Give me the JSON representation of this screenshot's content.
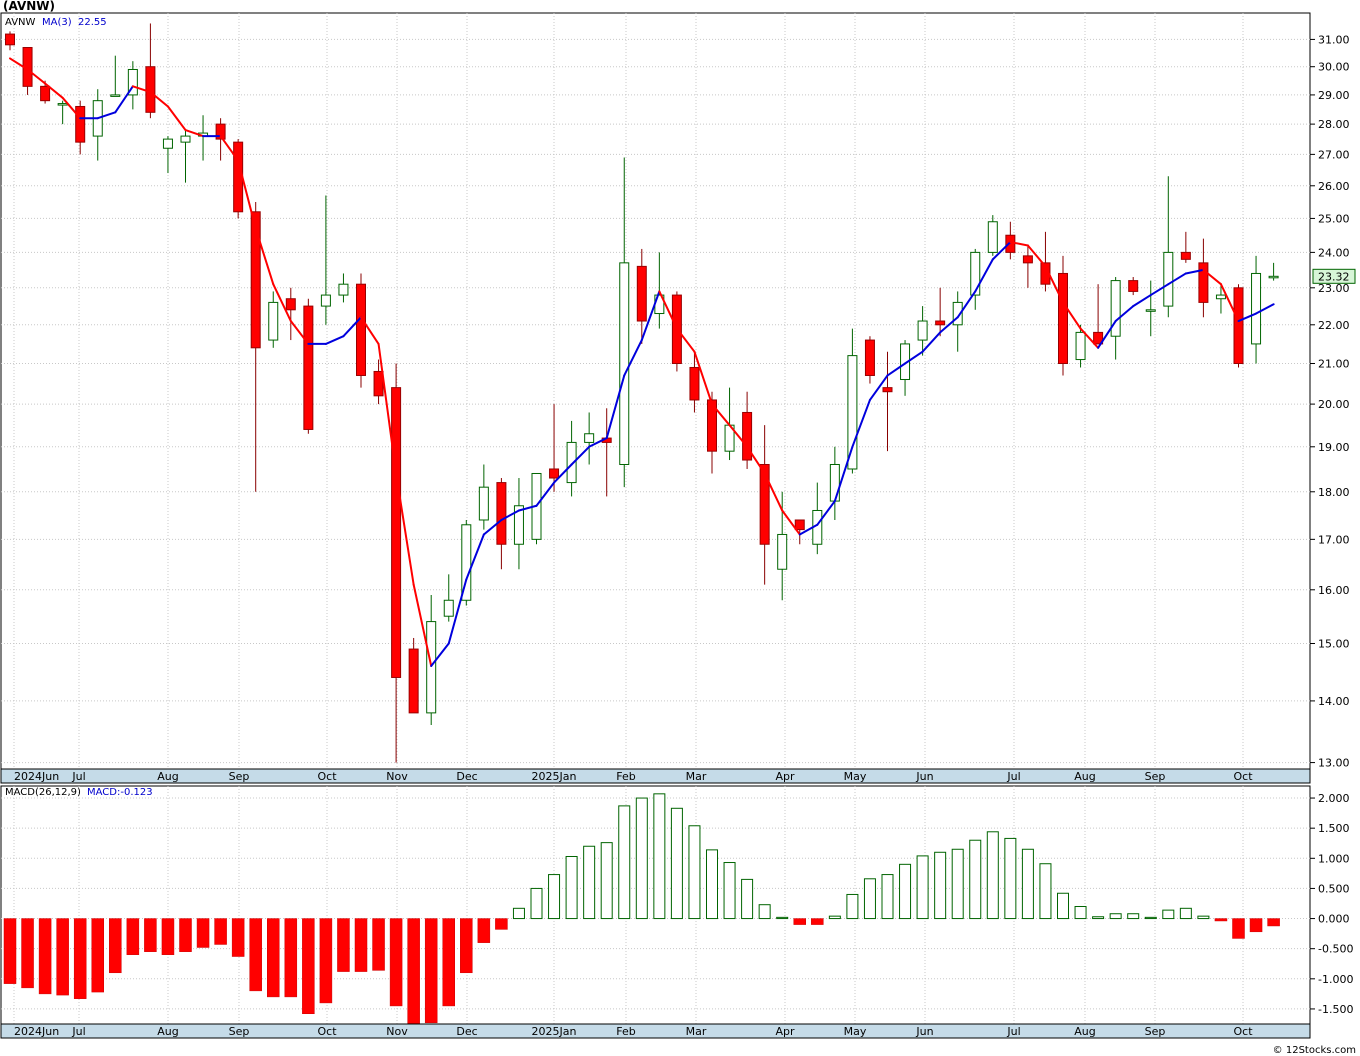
{
  "header": {
    "title": "(AVNW)",
    "legend_symbol": "AVNW",
    "legend_ma": "MA(3)",
    "legend_ma_value": "22.55",
    "macd_label": "MACD(26,12,9)",
    "macd_value_label": "MACD:-0.123",
    "last_price": "23.32",
    "credit": "© 12Stocks.com"
  },
  "colors": {
    "down": "#ff0000",
    "up_fill": "#ffffff",
    "up_stroke": "#006400",
    "ma_down": "#ff0000",
    "ma_up": "#0000dd",
    "grid": "#c8c8c8",
    "axis_band": "#c5dbe8",
    "macd_neg": "#ff0000",
    "macd_pos_stroke": "#006400"
  },
  "chart_data": [
    {
      "type": "candlestick",
      "title": "(AVNW)",
      "scale": "log",
      "ylim": [
        12.9,
        32.0
      ],
      "y_ticks": [
        "13.00",
        "14.00",
        "15.00",
        "16.00",
        "17.00",
        "18.00",
        "19.00",
        "20.00",
        "21.00",
        "22.00",
        "23.00",
        "24.00",
        "25.00",
        "26.00",
        "27.00",
        "28.00",
        "29.00",
        "30.00",
        "31.00"
      ],
      "x_labels": [
        "2024Jun",
        "Jul",
        "Aug",
        "Sep",
        "Oct",
        "Nov",
        "Dec",
        "2025Jan",
        "Feb",
        "Mar",
        "Apr",
        "May",
        "Jun",
        "Jul",
        "Aug",
        "Sep",
        "Oct"
      ],
      "grid": true,
      "candles": [
        {
          "o": 31.2,
          "h": 31.3,
          "l": 30.6,
          "c": 30.8
        },
        {
          "o": 30.7,
          "h": 30.7,
          "l": 29.0,
          "c": 29.3
        },
        {
          "o": 29.3,
          "h": 29.5,
          "l": 28.7,
          "c": 28.8
        },
        {
          "o": 28.7,
          "h": 28.8,
          "l": 28.0,
          "c": 28.7
        },
        {
          "o": 28.6,
          "h": 28.8,
          "l": 27.0,
          "c": 27.4
        },
        {
          "o": 27.6,
          "h": 29.2,
          "l": 26.8,
          "c": 28.8
        },
        {
          "o": 29.0,
          "h": 30.4,
          "l": 29.0,
          "c": 29.0
        },
        {
          "o": 29.0,
          "h": 30.2,
          "l": 28.5,
          "c": 29.9
        },
        {
          "o": 30.0,
          "h": 31.6,
          "l": 28.2,
          "c": 28.4
        },
        {
          "o": 27.2,
          "h": 27.6,
          "l": 26.4,
          "c": 27.5
        },
        {
          "o": 27.4,
          "h": 27.8,
          "l": 26.1,
          "c": 27.6
        },
        {
          "o": 27.6,
          "h": 28.3,
          "l": 26.8,
          "c": 27.7
        },
        {
          "o": 28.0,
          "h": 28.2,
          "l": 26.8,
          "c": 27.5
        },
        {
          "o": 27.4,
          "h": 27.5,
          "l": 25.0,
          "c": 25.2
        },
        {
          "o": 25.2,
          "h": 25.5,
          "l": 18.0,
          "c": 21.4
        },
        {
          "o": 21.6,
          "h": 22.9,
          "l": 21.4,
          "c": 22.6
        },
        {
          "o": 22.7,
          "h": 23.0,
          "l": 21.6,
          "c": 22.4
        },
        {
          "o": 22.5,
          "h": 22.7,
          "l": 19.3,
          "c": 19.4
        },
        {
          "o": 22.5,
          "h": 25.7,
          "l": 22.0,
          "c": 22.8
        },
        {
          "o": 22.8,
          "h": 23.4,
          "l": 22.6,
          "c": 23.1
        },
        {
          "o": 23.1,
          "h": 23.4,
          "l": 20.4,
          "c": 20.7
        },
        {
          "o": 20.8,
          "h": 21.1,
          "l": 20.0,
          "c": 20.2
        },
        {
          "o": 20.4,
          "h": 21.0,
          "l": 13.0,
          "c": 14.4
        },
        {
          "o": 14.9,
          "h": 15.1,
          "l": 13.8,
          "c": 13.8
        },
        {
          "o": 13.8,
          "h": 15.9,
          "l": 13.6,
          "c": 15.4
        },
        {
          "o": 15.5,
          "h": 16.3,
          "l": 15.4,
          "c": 15.8
        },
        {
          "o": 15.8,
          "h": 17.4,
          "l": 15.7,
          "c": 17.3
        },
        {
          "o": 17.4,
          "h": 18.6,
          "l": 17.2,
          "c": 18.1
        },
        {
          "o": 18.2,
          "h": 18.3,
          "l": 16.4,
          "c": 16.9
        },
        {
          "o": 16.9,
          "h": 18.3,
          "l": 16.4,
          "c": 17.7
        },
        {
          "o": 17.0,
          "h": 18.3,
          "l": 16.9,
          "c": 18.4
        },
        {
          "o": 18.5,
          "h": 20.0,
          "l": 18.0,
          "c": 18.3
        },
        {
          "o": 18.2,
          "h": 19.6,
          "l": 17.9,
          "c": 19.1
        },
        {
          "o": 19.1,
          "h": 19.8,
          "l": 18.6,
          "c": 19.3
        },
        {
          "o": 19.2,
          "h": 19.9,
          "l": 17.9,
          "c": 19.1
        },
        {
          "o": 18.6,
          "h": 26.9,
          "l": 18.1,
          "c": 23.7
        },
        {
          "o": 23.6,
          "h": 24.1,
          "l": 21.5,
          "c": 22.1
        },
        {
          "o": 22.3,
          "h": 24.0,
          "l": 21.9,
          "c": 22.8
        },
        {
          "o": 22.8,
          "h": 22.9,
          "l": 20.8,
          "c": 21.0
        },
        {
          "o": 20.9,
          "h": 21.3,
          "l": 19.8,
          "c": 20.1
        },
        {
          "o": 20.1,
          "h": 20.3,
          "l": 18.4,
          "c": 18.9
        },
        {
          "o": 18.9,
          "h": 20.4,
          "l": 18.7,
          "c": 19.5
        },
        {
          "o": 19.8,
          "h": 20.3,
          "l": 18.5,
          "c": 18.7
        },
        {
          "o": 18.6,
          "h": 19.5,
          "l": 16.1,
          "c": 16.9
        },
        {
          "o": 16.4,
          "h": 18.0,
          "l": 15.8,
          "c": 17.1
        },
        {
          "o": 17.4,
          "h": 17.4,
          "l": 16.9,
          "c": 17.2
        },
        {
          "o": 16.9,
          "h": 18.2,
          "l": 16.7,
          "c": 17.6
        },
        {
          "o": 17.8,
          "h": 19.0,
          "l": 17.4,
          "c": 18.6
        },
        {
          "o": 18.5,
          "h": 21.9,
          "l": 18.4,
          "c": 21.2
        },
        {
          "o": 21.6,
          "h": 21.7,
          "l": 20.5,
          "c": 20.7
        },
        {
          "o": 20.4,
          "h": 21.3,
          "l": 18.9,
          "c": 20.3
        },
        {
          "o": 20.6,
          "h": 21.6,
          "l": 20.2,
          "c": 21.5
        },
        {
          "o": 21.6,
          "h": 22.5,
          "l": 21.2,
          "c": 22.1
        },
        {
          "o": 22.1,
          "h": 23.0,
          "l": 21.7,
          "c": 22.0
        },
        {
          "o": 22.0,
          "h": 22.9,
          "l": 21.3,
          "c": 22.6
        },
        {
          "o": 22.8,
          "h": 24.1,
          "l": 22.4,
          "c": 24.0
        },
        {
          "o": 24.0,
          "h": 25.1,
          "l": 23.9,
          "c": 24.9
        },
        {
          "o": 24.5,
          "h": 24.9,
          "l": 23.8,
          "c": 24.0
        },
        {
          "o": 23.9,
          "h": 24.2,
          "l": 23.0,
          "c": 23.7
        },
        {
          "o": 23.7,
          "h": 24.6,
          "l": 22.9,
          "c": 23.1
        },
        {
          "o": 23.4,
          "h": 23.9,
          "l": 20.7,
          "c": 21.0
        },
        {
          "o": 21.1,
          "h": 22.0,
          "l": 20.9,
          "c": 21.8
        },
        {
          "o": 21.8,
          "h": 23.1,
          "l": 21.5,
          "c": 21.5
        },
        {
          "o": 21.7,
          "h": 23.3,
          "l": 21.1,
          "c": 23.2
        },
        {
          "o": 23.2,
          "h": 23.3,
          "l": 22.8,
          "c": 22.9
        },
        {
          "o": 22.4,
          "h": 23.2,
          "l": 21.7,
          "c": 22.4
        },
        {
          "o": 22.5,
          "h": 26.3,
          "l": 22.2,
          "c": 24.0
        },
        {
          "o": 24.0,
          "h": 24.6,
          "l": 23.7,
          "c": 23.8
        },
        {
          "o": 23.7,
          "h": 24.4,
          "l": 22.2,
          "c": 22.6
        },
        {
          "o": 22.7,
          "h": 23.1,
          "l": 22.3,
          "c": 22.8
        },
        {
          "o": 23.0,
          "h": 23.1,
          "l": 20.9,
          "c": 21.0
        },
        {
          "o": 21.5,
          "h": 23.9,
          "l": 21.0,
          "c": 23.4
        },
        {
          "o": 23.3,
          "h": 23.7,
          "l": 23.2,
          "c": 23.32
        }
      ],
      "ma3": [
        30.3,
        29.9,
        29.4,
        28.9,
        28.2,
        28.2,
        28.4,
        29.3,
        29.1,
        28.6,
        27.8,
        27.6,
        27.6,
        26.8,
        24.7,
        23.1,
        22.1,
        21.5,
        21.5,
        21.7,
        22.2,
        21.5,
        18.4,
        16.1,
        14.6,
        15.0,
        16.2,
        17.1,
        17.4,
        17.6,
        17.7,
        18.2,
        18.6,
        19.0,
        19.2,
        20.7,
        21.6,
        22.9,
        21.9,
        21.3,
        20.0,
        19.5,
        19.0,
        18.4,
        17.6,
        17.1,
        17.3,
        17.8,
        19.0,
        20.1,
        20.7,
        21.0,
        21.3,
        21.8,
        22.2,
        22.9,
        23.8,
        24.3,
        24.2,
        23.6,
        22.6,
        21.9,
        21.4,
        22.1,
        22.5,
        22.8,
        23.1,
        23.4,
        23.5,
        23.1,
        22.1,
        22.3,
        22.55
      ]
    },
    {
      "type": "bar",
      "title": "MACD(26,12,9)",
      "ylim": [
        -1.75,
        2.2
      ],
      "y_ticks": [
        "-1.500",
        "-1.000",
        "-0.500",
        "0.000",
        "0.500",
        "1.000",
        "1.500",
        "2.000"
      ],
      "x_labels": [
        "2024Jun",
        "Jul",
        "Aug",
        "Sep",
        "Oct",
        "Nov",
        "Dec",
        "2025Jan",
        "Feb",
        "Mar",
        "Apr",
        "May",
        "Jun",
        "Jul",
        "Aug",
        "Sep",
        "Oct"
      ],
      "values": [
        -1.08,
        -1.15,
        -1.25,
        -1.27,
        -1.33,
        -1.22,
        -0.9,
        -0.6,
        -0.55,
        -0.6,
        -0.55,
        -0.48,
        -0.43,
        -0.63,
        -1.2,
        -1.3,
        -1.3,
        -1.58,
        -1.4,
        -0.88,
        -0.88,
        -0.86,
        -1.45,
        -1.78,
        -1.73,
        -1.45,
        -0.9,
        -0.4,
        -0.18,
        0.17,
        0.5,
        0.73,
        1.03,
        1.2,
        1.26,
        1.87,
        2.0,
        2.07,
        1.83,
        1.54,
        1.14,
        0.93,
        0.65,
        0.23,
        0.02,
        -0.1,
        -0.1,
        0.04,
        0.4,
        0.66,
        0.73,
        0.9,
        1.04,
        1.1,
        1.15,
        1.3,
        1.44,
        1.33,
        1.15,
        0.91,
        0.42,
        0.2,
        0.03,
        0.08,
        0.08,
        0.02,
        0.14,
        0.17,
        0.04,
        -0.04,
        -0.33,
        -0.22,
        -0.123
      ]
    }
  ]
}
